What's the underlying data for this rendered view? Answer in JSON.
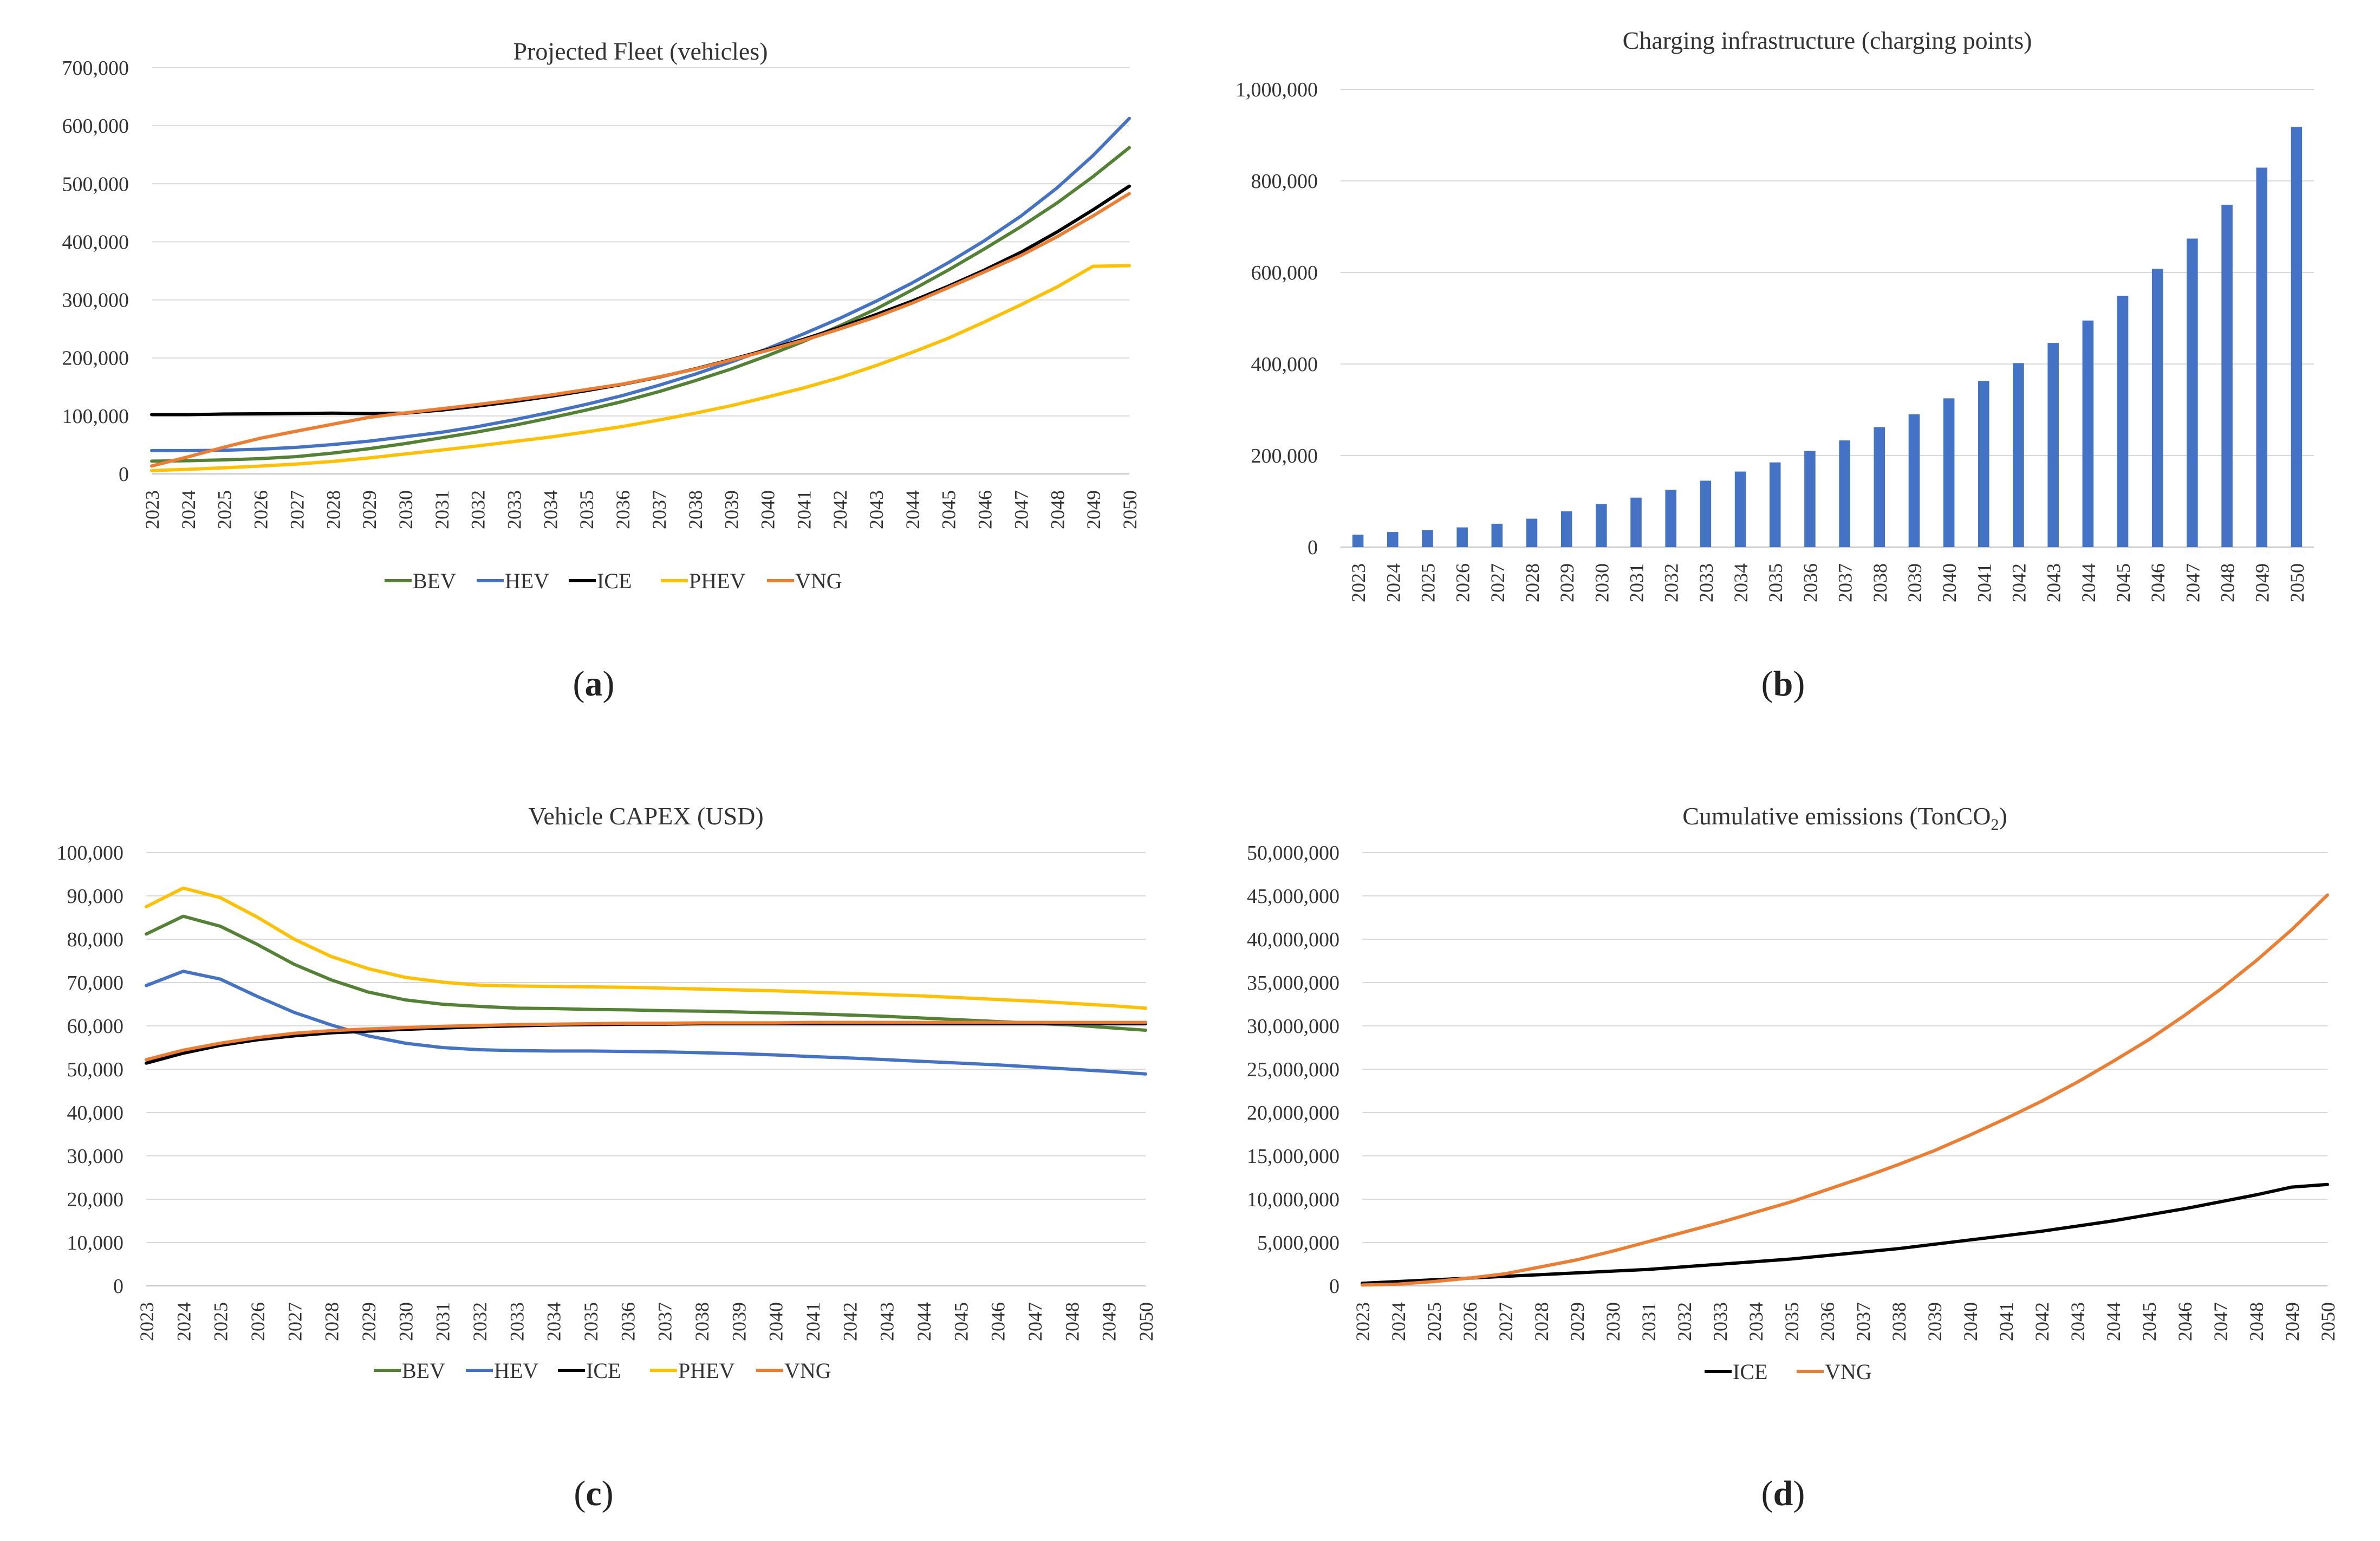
{
  "captions": {
    "a": "a",
    "b": "b",
    "c": "c",
    "d": "d"
  },
  "years": [
    "2023",
    "2024",
    "2025",
    "2026",
    "2027",
    "2028",
    "2029",
    "2030",
    "2031",
    "2032",
    "2033",
    "2034",
    "2035",
    "2036",
    "2037",
    "2038",
    "2039",
    "2040",
    "2041",
    "2042",
    "2043",
    "2044",
    "2045",
    "2046",
    "2047",
    "2048",
    "2049",
    "2050"
  ],
  "chart_data": [
    {
      "id": "a",
      "type": "line",
      "title": "Projected Fleet (vehicles)",
      "xlabel": "",
      "ylabel": "",
      "ylim": [
        0,
        700000
      ],
      "yticks": [
        0,
        100000,
        200000,
        300000,
        400000,
        500000,
        600000,
        700000
      ],
      "ytick_labels": [
        "0",
        "100,000",
        "200,000",
        "300,000",
        "400,000",
        "500,000",
        "600,000",
        "700,000"
      ],
      "grid": true,
      "legend": "bottom",
      "series": [
        {
          "name": "BEV",
          "color": "#548235",
          "values": [
            22000,
            22800,
            24300,
            26300,
            29900,
            35900,
            43500,
            52300,
            62300,
            72400,
            83700,
            96400,
            110000,
            124800,
            141700,
            160500,
            180800,
            203700,
            228300,
            255200,
            284100,
            317000,
            351300,
            387800,
            425800,
            466800,
            512400,
            562300
          ]
        },
        {
          "name": "HEV",
          "color": "#4472C4",
          "values": [
            40200,
            40200,
            40800,
            42700,
            45800,
            50700,
            56500,
            64000,
            71800,
            81600,
            93200,
            106000,
            119800,
            135100,
            152600,
            171700,
            192900,
            215800,
            241300,
            268100,
            297400,
            329100,
            364000,
            402000,
            444000,
            492700,
            548800,
            612600
          ]
        },
        {
          "name": "ICE",
          "color": "#000000",
          "values": [
            102200,
            102200,
            103200,
            103600,
            104200,
            104700,
            104100,
            104700,
            110000,
            117000,
            124800,
            133700,
            143500,
            154400,
            166700,
            180900,
            197000,
            214100,
            231900,
            252400,
            274500,
            297800,
            323500,
            351300,
            381700,
            416800,
            455200,
            495900
          ]
        },
        {
          "name": "PHEV",
          "color": "#FFC000",
          "values": [
            5900,
            7900,
            10600,
            13500,
            17100,
            21600,
            27500,
            34400,
            41300,
            48300,
            55900,
            63500,
            72300,
            81800,
            92800,
            104600,
            117600,
            132400,
            148100,
            165900,
            186600,
            209400,
            233800,
            261900,
            291300,
            322000,
            357800,
            359000
          ]
        },
        {
          "name": "VNG",
          "color": "#ED7D31",
          "values": [
            13700,
            29400,
            46200,
            61500,
            73700,
            85700,
            97400,
            105200,
            112400,
            119700,
            127500,
            135800,
            145400,
            154800,
            167100,
            180400,
            196300,
            212700,
            230100,
            249800,
            270600,
            294400,
            321000,
            348200,
            376200,
            408600,
            444700,
            483100
          ]
        }
      ]
    },
    {
      "id": "b",
      "type": "bar",
      "title": "Charging infrastructure (charging points)",
      "xlabel": "",
      "ylabel": "",
      "ylim": [
        0,
        1000000
      ],
      "yticks": [
        0,
        200000,
        400000,
        600000,
        800000,
        1000000
      ],
      "ytick_labels": [
        "0",
        "200,000",
        "400,000",
        "600,000",
        "800,000",
        "1,000,000"
      ],
      "grid": true,
      "series": [
        {
          "name": "Charging points",
          "color": "#4472C4",
          "values": [
            27000,
            33000,
            37000,
            43000,
            51000,
            62000,
            78000,
            94000,
            108000,
            125000,
            145000,
            165000,
            185000,
            210000,
            233000,
            262000,
            290000,
            325000,
            363000,
            402000,
            446000,
            495000,
            549000,
            608000,
            674000,
            748000,
            829000,
            918000
          ]
        }
      ]
    },
    {
      "id": "c",
      "type": "line",
      "title": "Vehicle CAPEX (USD)",
      "xlabel": "",
      "ylabel": "",
      "ylim": [
        0,
        100000
      ],
      "yticks": [
        0,
        10000,
        20000,
        30000,
        40000,
        50000,
        60000,
        70000,
        80000,
        90000,
        100000
      ],
      "ytick_labels": [
        "0",
        "10,000",
        "20,000",
        "30,000",
        "40,000",
        "50,000",
        "60,000",
        "70,000",
        "80,000",
        "90,000",
        "100,000"
      ],
      "grid": true,
      "legend": "bottom",
      "series": [
        {
          "name": "BEV",
          "color": "#548235",
          "values": [
            81200,
            85300,
            83000,
            78800,
            74200,
            70600,
            67800,
            66000,
            65000,
            64500,
            64100,
            64000,
            63800,
            63700,
            63500,
            63400,
            63200,
            63000,
            62800,
            62500,
            62200,
            61800,
            61400,
            61000,
            60600,
            60200,
            59600,
            59000
          ]
        },
        {
          "name": "HEV",
          "color": "#4472C4",
          "values": [
            69300,
            72600,
            70800,
            66800,
            63100,
            60200,
            57700,
            56000,
            55000,
            54500,
            54300,
            54200,
            54200,
            54100,
            54000,
            53800,
            53600,
            53300,
            52900,
            52600,
            52200,
            51800,
            51400,
            51000,
            50500,
            50000,
            49500,
            48900
          ]
        },
        {
          "name": "ICE",
          "color": "#000000",
          "values": [
            51400,
            53700,
            55500,
            56800,
            57700,
            58400,
            58800,
            59200,
            59500,
            59800,
            60000,
            60200,
            60300,
            60400,
            60400,
            60500,
            60500,
            60500,
            60500,
            60500,
            60500,
            60500,
            60500,
            60500,
            60500,
            60500,
            60500,
            60500
          ]
        },
        {
          "name": "PHEV",
          "color": "#FFC000",
          "values": [
            87500,
            91800,
            89600,
            85100,
            80000,
            76000,
            73200,
            71200,
            70100,
            69400,
            69200,
            69100,
            69000,
            68900,
            68700,
            68500,
            68300,
            68100,
            67800,
            67500,
            67200,
            66900,
            66500,
            66100,
            65700,
            65200,
            64700,
            64100
          ]
        },
        {
          "name": "VNG",
          "color": "#ED7D31",
          "values": [
            52200,
            54400,
            56000,
            57300,
            58300,
            58900,
            59300,
            59600,
            59900,
            60100,
            60300,
            60400,
            60500,
            60600,
            60600,
            60700,
            60700,
            60700,
            60800,
            60800,
            60800,
            60800,
            60800,
            60800,
            60800,
            60800,
            60800,
            60800
          ]
        }
      ]
    },
    {
      "id": "d",
      "type": "line",
      "title": "Cumulative emissions (TonCO",
      "title_sub": "2",
      "title_end": ")",
      "xlabel": "",
      "ylabel": "",
      "ylim": [
        0,
        50000000
      ],
      "yticks": [
        0,
        5000000,
        10000000,
        15000000,
        20000000,
        25000000,
        30000000,
        35000000,
        40000000,
        45000000,
        50000000
      ],
      "ytick_labels": [
        "0",
        "5,000,000",
        "10,000,000",
        "15,000,000",
        "20,000,000",
        "25,000,000",
        "30,000,000",
        "35,000,000",
        "40,000,000",
        "45,000,000",
        "50,000,000"
      ],
      "grid": true,
      "legend": "bottom",
      "series": [
        {
          "name": "ICE",
          "color": "#000000",
          "values": [
            300000,
            500000,
            700000,
            900000,
            1100000,
            1300000,
            1500000,
            1700000,
            1900000,
            2200000,
            2500000,
            2800000,
            3100000,
            3500000,
            3900000,
            4300000,
            4800000,
            5300000,
            5800000,
            6300000,
            6900000,
            7500000,
            8200000,
            8900000,
            9700000,
            10500000,
            11400000,
            11700000
          ]
        },
        {
          "name": "VNG",
          "color": "#ED7D31",
          "values": [
            100000,
            200000,
            500000,
            900000,
            1400000,
            2200000,
            3000000,
            4000000,
            5100000,
            6200000,
            7300000,
            8500000,
            9700000,
            11100000,
            12500000,
            14000000,
            15600000,
            17400000,
            19300000,
            21300000,
            23500000,
            25900000,
            28400000,
            31200000,
            34200000,
            37500000,
            41100000,
            45100000
          ]
        }
      ]
    }
  ]
}
